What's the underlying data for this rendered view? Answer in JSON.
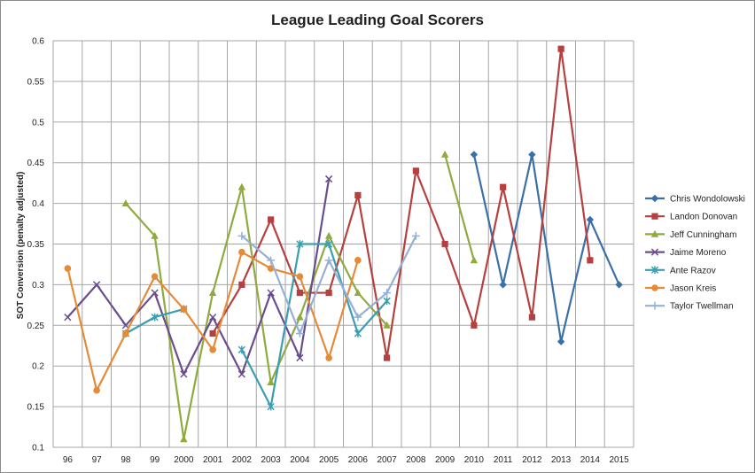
{
  "chart_data": {
    "type": "line",
    "title": "League Leading Goal Scorers",
    "xlabel": "",
    "ylabel": "SOT Conversion (penalty adjusted)",
    "categories": [
      "96",
      "97",
      "98",
      "99",
      "2000",
      "2001",
      "2002",
      "2003",
      "2004",
      "2005",
      "2006",
      "2007",
      "2008",
      "2009",
      "2010",
      "2011",
      "2012",
      "2013",
      "2014",
      "2015"
    ],
    "ylim": [
      0.1,
      0.6
    ],
    "yticks": [
      "0.1",
      "0.15",
      "0.2",
      "0.25",
      "0.3",
      "0.35",
      "0.4",
      "0.45",
      "0.5",
      "0.55",
      "0.6"
    ],
    "grid": "vertical and horizontal",
    "legend": "right",
    "series": [
      {
        "name": "Chris Wondolowski",
        "color": "#3a6fa8",
        "marker": "diamond",
        "values": [
          null,
          null,
          null,
          null,
          null,
          null,
          null,
          null,
          null,
          null,
          null,
          null,
          null,
          null,
          0.46,
          0.3,
          0.46,
          0.23,
          0.38,
          0.3
        ]
      },
      {
        "name": "Landon Donovan",
        "color": "#b5403f",
        "marker": "square",
        "values": [
          null,
          null,
          null,
          null,
          null,
          0.24,
          0.3,
          0.38,
          0.29,
          0.29,
          0.41,
          0.21,
          0.44,
          0.35,
          0.25,
          0.42,
          0.26,
          0.59,
          0.33,
          null
        ]
      },
      {
        "name": "Jeff Cunningham",
        "color": "#8faa3f",
        "marker": "triangle",
        "values": [
          null,
          null,
          0.4,
          0.36,
          0.11,
          0.29,
          0.42,
          0.18,
          0.26,
          0.36,
          0.29,
          0.25,
          null,
          0.46,
          0.33,
          null,
          null,
          null,
          null,
          null
        ]
      },
      {
        "name": "Jaime Moreno",
        "color": "#6a4d8e",
        "marker": "x",
        "values": [
          0.26,
          0.3,
          0.25,
          0.29,
          0.19,
          0.26,
          0.19,
          0.29,
          0.21,
          0.43,
          null,
          null,
          null,
          null,
          null,
          null,
          null,
          null,
          null,
          null
        ]
      },
      {
        "name": "Ante Razov",
        "color": "#3a9fb0",
        "marker": "star",
        "values": [
          null,
          null,
          0.24,
          0.26,
          0.27,
          null,
          0.22,
          0.15,
          0.35,
          0.35,
          0.24,
          0.28,
          null,
          null,
          null,
          null,
          null,
          null,
          null,
          null
        ]
      },
      {
        "name": "Jason Kreis",
        "color": "#e58a36",
        "marker": "circle",
        "values": [
          0.32,
          0.17,
          0.24,
          0.31,
          0.27,
          0.22,
          0.34,
          0.32,
          0.31,
          0.21,
          0.33,
          null,
          null,
          null,
          null,
          null,
          null,
          null,
          null,
          null
        ]
      },
      {
        "name": "Taylor Twellman",
        "color": "#95b0d6",
        "marker": "plus",
        "values": [
          null,
          null,
          null,
          null,
          null,
          null,
          0.36,
          0.33,
          0.24,
          0.33,
          0.26,
          0.29,
          0.36,
          null,
          null,
          null,
          null,
          null,
          null,
          null
        ]
      }
    ]
  }
}
